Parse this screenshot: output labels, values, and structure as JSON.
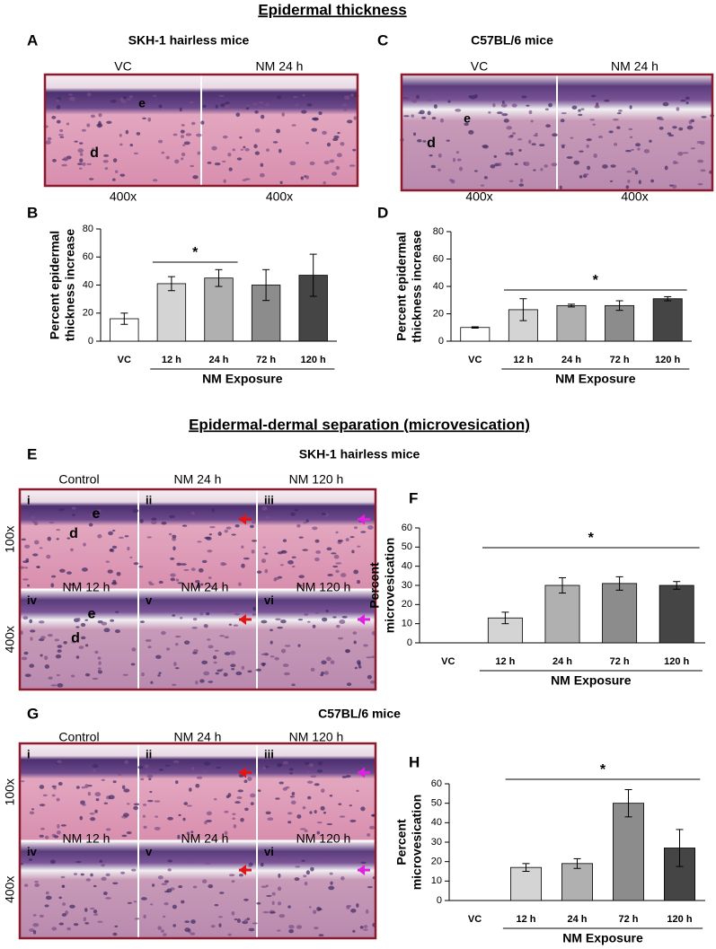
{
  "headings": [
    "Epidermal thickness",
    "Epidermal-dermal separation (microvesication)"
  ],
  "panel_letters": [
    "A",
    "B",
    "C",
    "D",
    "E",
    "F",
    "G",
    "H"
  ],
  "image_panels": [
    {
      "strain": "SKH-1 hairless mice",
      "labels": [
        "VC",
        "NM 24 h"
      ],
      "magnifications": [
        "400x",
        "400x"
      ],
      "markers": [
        "e",
        "d"
      ]
    },
    {
      "strain": "C57BL/6 mice",
      "labels": [
        "VC",
        "NM 24 h"
      ],
      "magnifications": [
        "400x",
        "400x"
      ],
      "markers": [
        "e",
        "d"
      ]
    },
    {
      "strain": "SKH-1 hairless mice",
      "labels": [
        "Control",
        "NM 24 h",
        "NM 120 h",
        "NM 12 h",
        "NM 24 h",
        "NM 120 h"
      ],
      "numerals": [
        "i",
        "ii",
        "iii",
        "iv",
        "v",
        "vi"
      ],
      "rows": [
        "100x",
        "400x"
      ],
      "markers": [
        "e",
        "d",
        "e",
        "d"
      ]
    },
    {
      "strain": "C57BL/6 mice",
      "labels": [
        "Control",
        "NM 24 h",
        "NM 120 h",
        "NM 12 h",
        "NM 24 h",
        "NM 120 h"
      ],
      "numerals": [
        "i",
        "ii",
        "iii",
        "iv",
        "v",
        "vi"
      ],
      "rows": [
        "100x",
        "400x"
      ]
    }
  ],
  "chart_data": [
    {
      "type": "bar",
      "ylabel": [
        "Percent epidermal",
        "thickness increase"
      ],
      "xlabel": "NM Exposure",
      "annotation": "*",
      "categories": [
        "VC",
        "12 h",
        "24 h",
        "72 h",
        "120 h"
      ],
      "values": [
        16,
        41,
        45,
        40,
        47
      ],
      "errors": [
        4,
        5,
        6,
        11,
        15
      ],
      "colors": [
        "#ffffff",
        "#d4d4d4",
        "#b0b0b0",
        "#8c8c8c",
        "#454545"
      ],
      "ylim": [
        0,
        80
      ],
      "yticks": [
        0,
        20,
        40,
        60,
        80
      ]
    },
    {
      "type": "bar",
      "ylabel": [
        "Percent epidermal",
        "thickness increase"
      ],
      "xlabel": "NM Exposure",
      "annotation": "*",
      "categories": [
        "VC",
        "12 h",
        "24 h",
        "72 h",
        "120 h"
      ],
      "values": [
        10,
        23,
        26,
        26,
        31
      ],
      "errors": [
        0.5,
        8,
        1,
        3.5,
        1.5
      ],
      "colors": [
        "#ffffff",
        "#d4d4d4",
        "#b0b0b0",
        "#8c8c8c",
        "#454545"
      ],
      "ylim": [
        0,
        80
      ],
      "yticks": [
        0,
        20,
        40,
        60,
        80
      ]
    },
    {
      "type": "bar",
      "ylabel": [
        "Percent",
        "microvesication"
      ],
      "xlabel": "NM Exposure",
      "annotation": "*",
      "categories": [
        "VC",
        "12 h",
        "24 h",
        "72 h",
        "120 h"
      ],
      "values": [
        0,
        13,
        30,
        31,
        30
      ],
      "errors": [
        0,
        3,
        4,
        3.5,
        2
      ],
      "colors": [
        "#ffffff",
        "#d4d4d4",
        "#b0b0b0",
        "#8c8c8c",
        "#454545"
      ],
      "ylim": [
        0,
        60
      ],
      "yticks": [
        0,
        10,
        20,
        30,
        40,
        50,
        60
      ]
    },
    {
      "type": "bar",
      "ylabel": [
        "Percent",
        "microvesication"
      ],
      "xlabel": "NM Exposure",
      "annotation": "*",
      "categories": [
        "VC",
        "12 h",
        "24 h",
        "72 h",
        "120 h"
      ],
      "values": [
        0,
        17,
        19,
        50,
        27
      ],
      "errors": [
        0,
        2,
        2.5,
        7,
        9.5
      ],
      "colors": [
        "#ffffff",
        "#d4d4d4",
        "#b0b0b0",
        "#8c8c8c",
        "#454545"
      ],
      "ylim": [
        0,
        60
      ],
      "yticks": [
        0,
        10,
        20,
        30,
        40,
        50,
        60
      ]
    }
  ]
}
